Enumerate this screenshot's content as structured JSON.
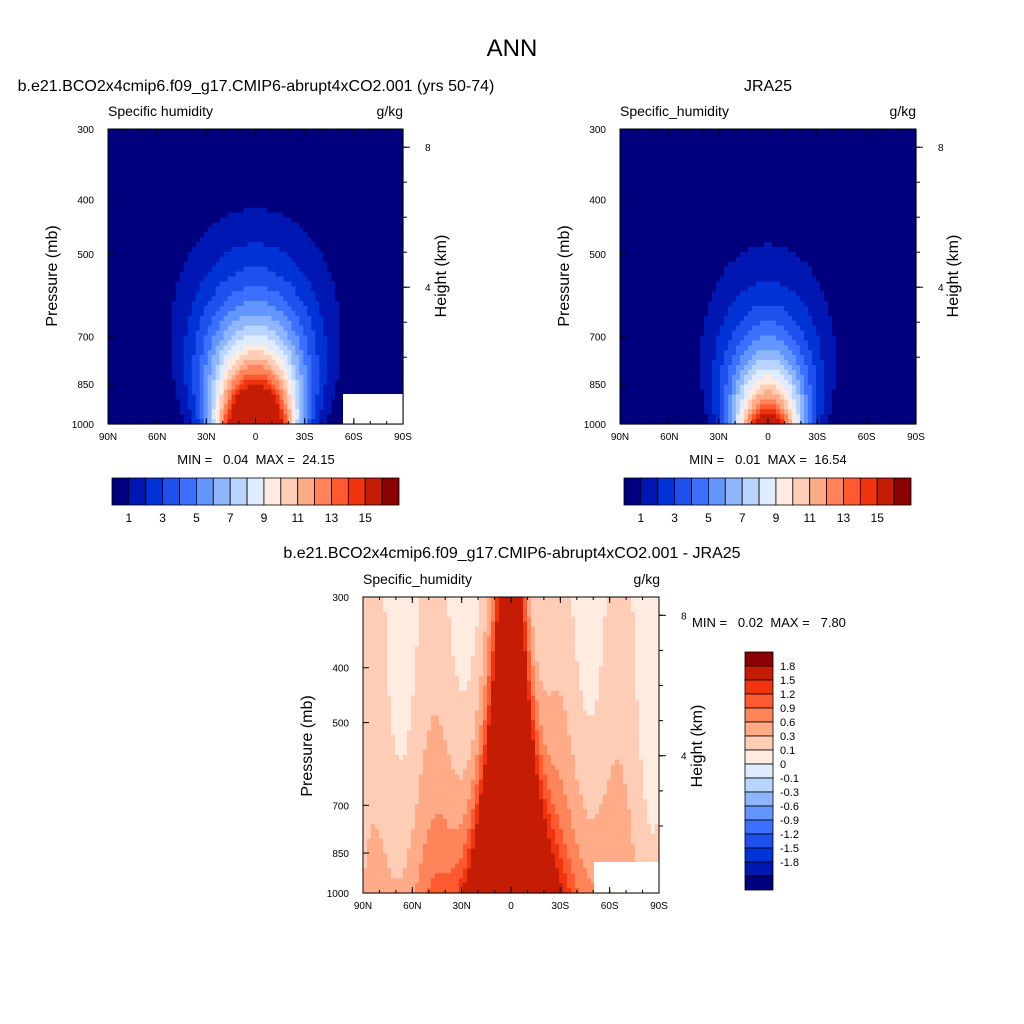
{
  "figure": {
    "title": "ANN"
  },
  "chart_data": [
    {
      "type": "heatmap",
      "title": "b.e21.BCO2x4cmip6.f09_g17.CMIP6-abrupt4xCO2.001 (yrs 50-74)",
      "variable": "Specific humidity",
      "units": "g/kg",
      "ylabel": "Pressure (mb)",
      "ylabel_right": "Height (km)",
      "x_ticks": [
        "90N",
        "60N",
        "30N",
        "0",
        "30S",
        "60S",
        "90S"
      ],
      "y_ticks": [
        300,
        400,
        500,
        700,
        850,
        1000
      ],
      "y_right_ticks": [
        8,
        4
      ],
      "min_label": "MIN =",
      "min_value": "0.04",
      "max_label": "MAX =",
      "max_value": "24.15",
      "summary": "MIN =   0.04  MAX =  24.15",
      "peak_value": 24.15,
      "colorbar_labels": [
        "1",
        "3",
        "5",
        "7",
        "9",
        "11",
        "13",
        "15"
      ],
      "levels": [
        1,
        2,
        3,
        4,
        5,
        6,
        7,
        8,
        9,
        10,
        11,
        12,
        13,
        14,
        15
      ],
      "colors": [
        "#00007f",
        "#0017b2",
        "#0033d6",
        "#1f50ee",
        "#3b70ff",
        "#6395ff",
        "#8eb6ff",
        "#b9d4ff",
        "#dfebff",
        "#ffebdf",
        "#ffcdb5",
        "#ffab88",
        "#ff8459",
        "#ff5a2f",
        "#f1340f",
        "#c51d05",
        "#8b0000"
      ]
    },
    {
      "type": "heatmap",
      "title": "JRA25",
      "variable": "Specific_humidity",
      "units": "g/kg",
      "ylabel": "Pressure (mb)",
      "ylabel_right": "Height (km)",
      "x_ticks": [
        "90N",
        "60N",
        "30N",
        "0",
        "30S",
        "60S",
        "90S"
      ],
      "y_ticks": [
        300,
        400,
        500,
        700,
        850,
        1000
      ],
      "y_right_ticks": [
        8,
        4
      ],
      "min_label": "MIN =",
      "min_value": "0.01",
      "max_label": "MAX =",
      "max_value": "16.54",
      "summary": "MIN =   0.01  MAX =  16.54",
      "peak_value": 16.54,
      "colorbar_labels": [
        "1",
        "3",
        "5",
        "7",
        "9",
        "11",
        "13",
        "15"
      ],
      "levels": [
        1,
        2,
        3,
        4,
        5,
        6,
        7,
        8,
        9,
        10,
        11,
        12,
        13,
        14,
        15
      ],
      "colors": [
        "#00007f",
        "#0017b2",
        "#0033d6",
        "#1f50ee",
        "#3b70ff",
        "#6395ff",
        "#8eb6ff",
        "#b9d4ff",
        "#dfebff",
        "#ffebdf",
        "#ffcdb5",
        "#ffab88",
        "#ff8459",
        "#ff5a2f",
        "#f1340f",
        "#c51d05",
        "#8b0000"
      ]
    },
    {
      "type": "heatmap",
      "title": "b.e21.BCO2x4cmip6.f09_g17.CMIP6-abrupt4xCO2.001 - JRA25",
      "variable": "Specific_humidity",
      "units": "g/kg",
      "ylabel": "Pressure (mb)",
      "ylabel_right": "Height (km)",
      "x_ticks": [
        "90N",
        "60N",
        "30N",
        "0",
        "30S",
        "60S",
        "90S"
      ],
      "y_ticks": [
        300,
        400,
        500,
        700,
        850,
        1000
      ],
      "y_right_ticks": [
        8,
        4
      ],
      "min_label": "MIN =",
      "min_value": "0.02",
      "max_label": "MAX =",
      "max_value": "7.80",
      "summary": "MIN =   0.02  MAX =   7.80",
      "peak_value": 7.8,
      "colorbar_labels": [
        "1.8",
        "1.5",
        "1.2",
        "0.9",
        "0.6",
        "0.3",
        "0.1",
        "0",
        "-0.1",
        "-0.3",
        "-0.6",
        "-0.9",
        "-1.2",
        "-1.5",
        "-1.8"
      ],
      "levels": [
        -1.8,
        -1.5,
        -1.2,
        -0.9,
        -0.6,
        -0.3,
        -0.1,
        0,
        0.1,
        0.3,
        0.6,
        0.9,
        1.2,
        1.5,
        1.8
      ],
      "colors": [
        "#00007f",
        "#0017b2",
        "#0033d6",
        "#1f50ee",
        "#3b70ff",
        "#6395ff",
        "#8eb6ff",
        "#b9d4ff",
        "#dfebff",
        "#ffebdf",
        "#ffcdb5",
        "#ffab88",
        "#ff8459",
        "#ff5a2f",
        "#f1340f",
        "#c51d05",
        "#8b0000"
      ]
    }
  ]
}
